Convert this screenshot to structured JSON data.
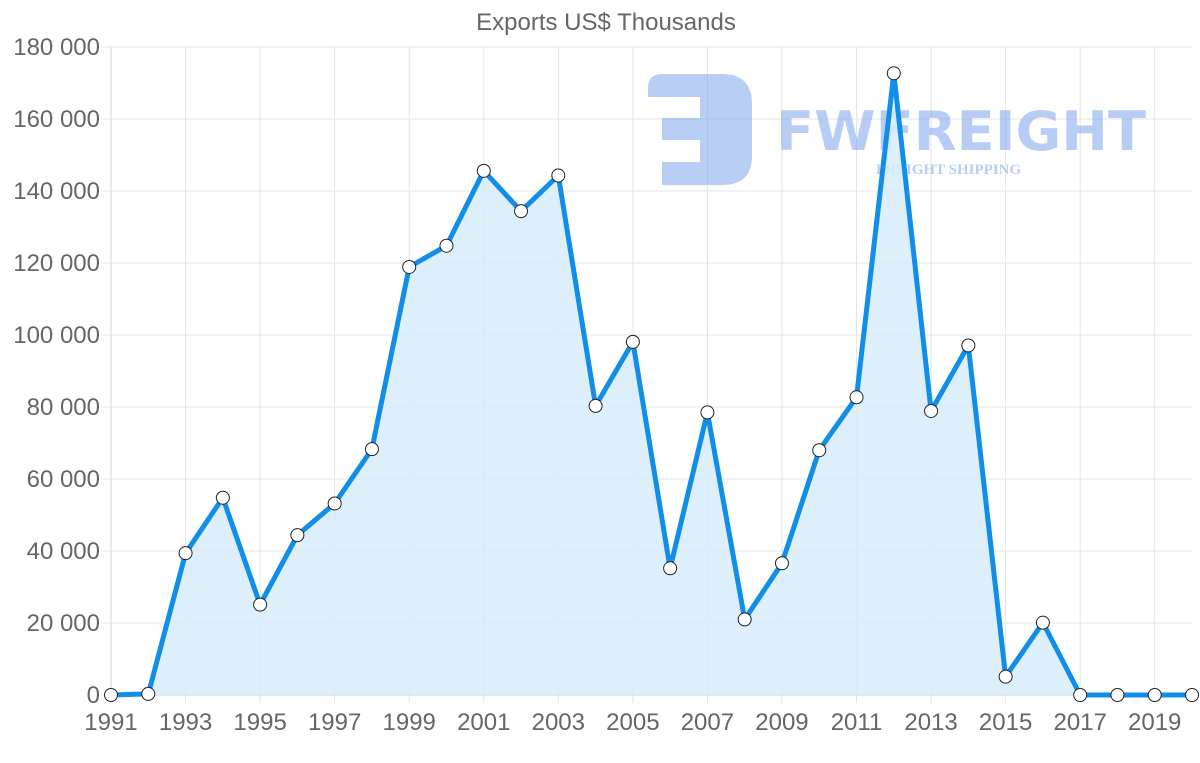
{
  "chart_data": {
    "type": "area",
    "title": "Exports US$ Thousands",
    "xlabel": "",
    "ylabel": "",
    "ylim": [
      0,
      180000
    ],
    "grid": true,
    "legend": null,
    "y_ticks": [
      "0",
      "20 000",
      "40 000",
      "60 000",
      "80 000",
      "100 000",
      "120 000",
      "140 000",
      "160 000",
      "180 000"
    ],
    "x_tick_labels": [
      "1991",
      "1993",
      "1995",
      "1997",
      "1999",
      "2001",
      "2003",
      "2005",
      "2007",
      "2009",
      "2011",
      "2013",
      "2015",
      "2017",
      "2019"
    ],
    "x": [
      1991,
      1992,
      1993,
      1994,
      1995,
      1996,
      1997,
      1998,
      1999,
      2000,
      2001,
      2002,
      2003,
      2004,
      2005,
      2006,
      2007,
      2008,
      2009,
      2010,
      2011,
      2012,
      2013,
      2014,
      2015,
      2016,
      2017,
      2018,
      2019,
      2020
    ],
    "series": [
      {
        "name": "Exports US$ Thousands",
        "values": [
          0,
          300,
          39400,
          54800,
          25100,
          44400,
          53200,
          68300,
          118900,
          124800,
          145600,
          134400,
          144300,
          80300,
          98100,
          35200,
          78500,
          21000,
          36600,
          68000,
          82700,
          172700,
          78900,
          97100,
          5100,
          20100,
          0,
          0,
          0,
          0
        ],
        "line_color": "#118ee8",
        "fill_color": "#d8ecfc"
      }
    ]
  },
  "watermark": {
    "brand": "FWFREIGHT",
    "tagline": "FREIGHT SHIPPING",
    "color": "#7ea6ec"
  }
}
